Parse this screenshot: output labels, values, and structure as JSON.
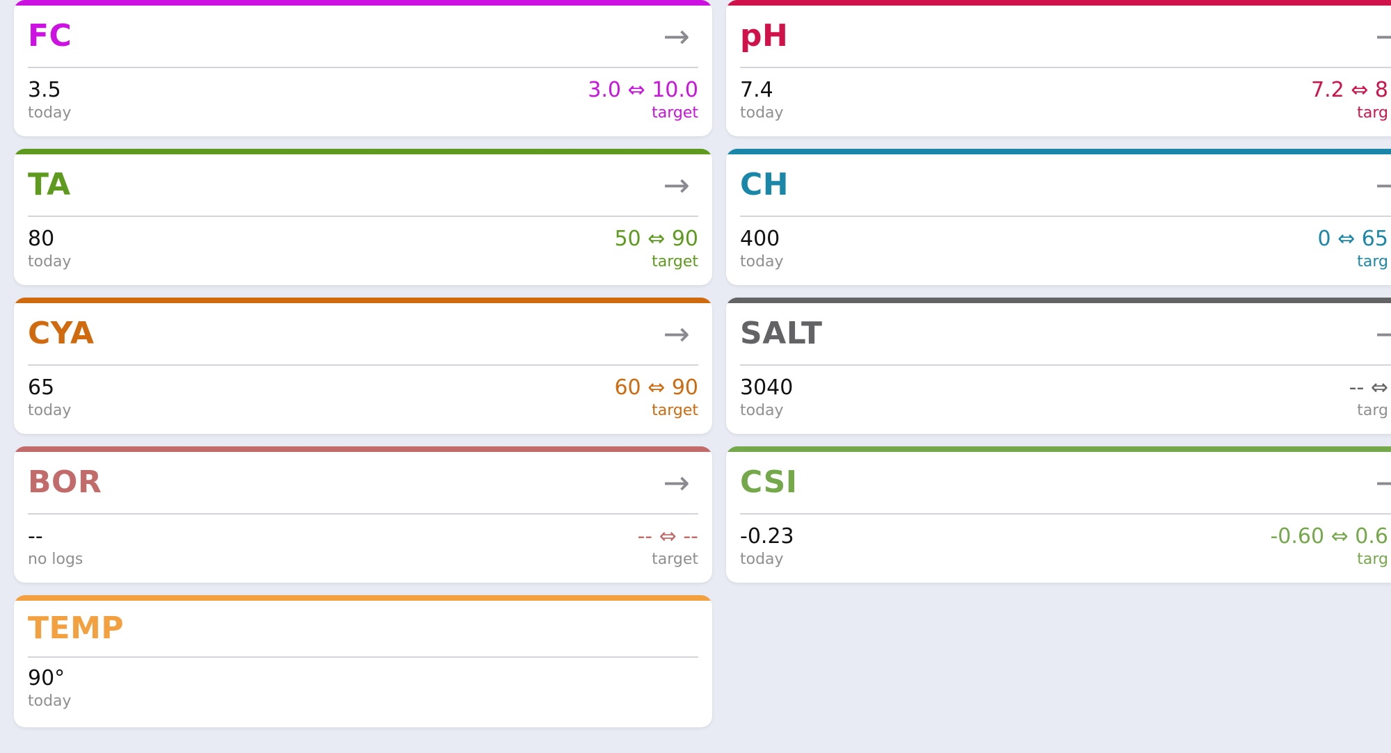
{
  "cards": [
    {
      "key": "fc",
      "name": "FC",
      "value": "3.5",
      "sub": "today",
      "target": "3.0 ⇔ 10.0",
      "target_label": "target",
      "color": "#cc12e0",
      "has_arrow": true
    },
    {
      "key": "ph",
      "name": "pH",
      "value": "7.4",
      "sub": "today",
      "target": "7.2 ⇔ 8",
      "target_label": "targ",
      "color": "#d0124a",
      "has_arrow": true
    },
    {
      "key": "ta",
      "name": "TA",
      "value": "80",
      "sub": "today",
      "target": "50 ⇔ 90",
      "target_label": "target",
      "color": "#5e9a1e",
      "has_arrow": true
    },
    {
      "key": "ch",
      "name": "CH",
      "value": "400",
      "sub": "today",
      "target": "0 ⇔ 65",
      "target_label": "targ",
      "color": "#1b87a8",
      "has_arrow": true
    },
    {
      "key": "cya",
      "name": "CYA",
      "value": "65",
      "sub": "today",
      "target": "60 ⇔ 90",
      "target_label": "target",
      "color": "#cf6a0e",
      "has_arrow": true
    },
    {
      "key": "salt",
      "name": "SALT",
      "value": "3040",
      "sub": "today",
      "target": "-- ⇔",
      "target_label": "targ",
      "color": "#636366",
      "has_arrow": true
    },
    {
      "key": "bor",
      "name": "BOR",
      "value": "--",
      "sub": "no logs",
      "target": "-- ⇔ --",
      "target_label": "target",
      "color": "#c26b6b",
      "has_arrow": true
    },
    {
      "key": "csi",
      "name": "CSI",
      "value": "-0.23",
      "sub": "today",
      "target": "-0.60 ⇔ 0.6",
      "target_label": "targ",
      "color": "#74a84a",
      "has_arrow": true
    },
    {
      "key": "temp",
      "name": "TEMP",
      "value": "90°",
      "sub": "today",
      "color": "#f2a040",
      "has_arrow": false
    }
  ],
  "icons": {
    "arrow": "→"
  }
}
